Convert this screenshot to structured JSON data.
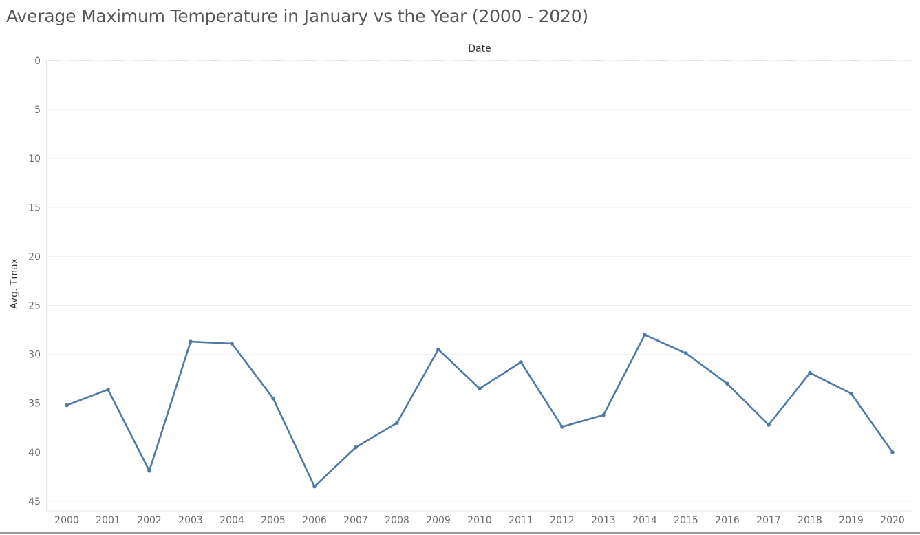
{
  "chart_data": {
    "type": "line",
    "title": "Average Maximum Temperature in January vs the Year (2000 - 2020)",
    "header": "Date",
    "xlabel": "",
    "ylabel": "Avg. Tmax",
    "y_reversed": true,
    "ylim": [
      0,
      46
    ],
    "yticks": [
      0,
      5,
      10,
      15,
      20,
      25,
      30,
      35,
      40,
      45
    ],
    "grid": true,
    "series": [
      {
        "name": "Avg. Tmax",
        "color": "#4e79a7",
        "x": [
          "2000",
          "2001",
          "2002",
          "2003",
          "2004",
          "2005",
          "2006",
          "2007",
          "2008",
          "2009",
          "2010",
          "2011",
          "2012",
          "2013",
          "2014",
          "2015",
          "2016",
          "2017",
          "2018",
          "2019",
          "2020"
        ],
        "values": [
          35.2,
          33.6,
          41.9,
          28.7,
          28.9,
          34.5,
          43.5,
          39.5,
          37.0,
          29.5,
          33.5,
          30.8,
          37.4,
          36.2,
          28.0,
          29.9,
          33.0,
          37.2,
          31.9,
          34.0,
          40.0
        ]
      }
    ]
  }
}
